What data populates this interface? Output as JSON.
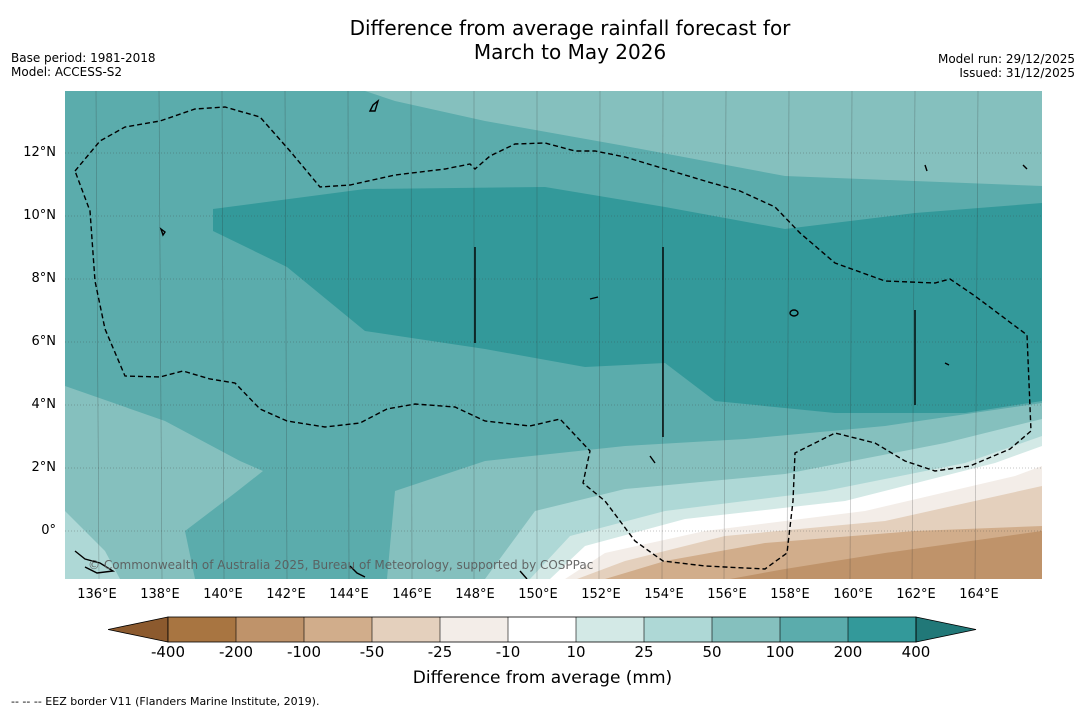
{
  "header": {
    "title_line1": "Difference from average rainfall forecast for",
    "title_line2": "March to May 2026",
    "base_period": "Base period: 1981-2018",
    "model": "Model: ACCESS-S2",
    "model_run": "Model run: 29/12/2025",
    "issued": "Issued: 31/12/2025"
  },
  "map": {
    "lat_labels": [
      "12°N",
      "10°N",
      "8°N",
      "6°N",
      "4°N",
      "2°N",
      "0°"
    ],
    "lon_labels": [
      "136°E",
      "138°E",
      "140°E",
      "142°E",
      "144°E",
      "146°E",
      "148°E",
      "150°E",
      "152°E",
      "154°E",
      "156°E",
      "158°E",
      "160°E",
      "162°E",
      "164°E"
    ],
    "copyright": "© Commonwealth of Australia 2025, Bureau of Meteorology, supported by COSPPac"
  },
  "colorbar": {
    "ticks": [
      "-400",
      "-200",
      "-100",
      "-50",
      "-25",
      "-10",
      "10",
      "25",
      "50",
      "100",
      "200",
      "400"
    ],
    "colors": {
      "below_min": "#8c5a2e",
      "bins": [
        "#a87541",
        "#bf936a",
        "#d1ad8b",
        "#e4d0bd",
        "#f3ede8",
        "#ffffff",
        "#d3e9e6",
        "#aed8d6",
        "#85c0be",
        "#5bacac",
        "#33999a"
      ],
      "above_max": "#217878"
    },
    "label": "Difference from average (mm)"
  },
  "footnote": "-- -- -- EEZ border V11 (Flanders Marine Institute, 2019)."
}
